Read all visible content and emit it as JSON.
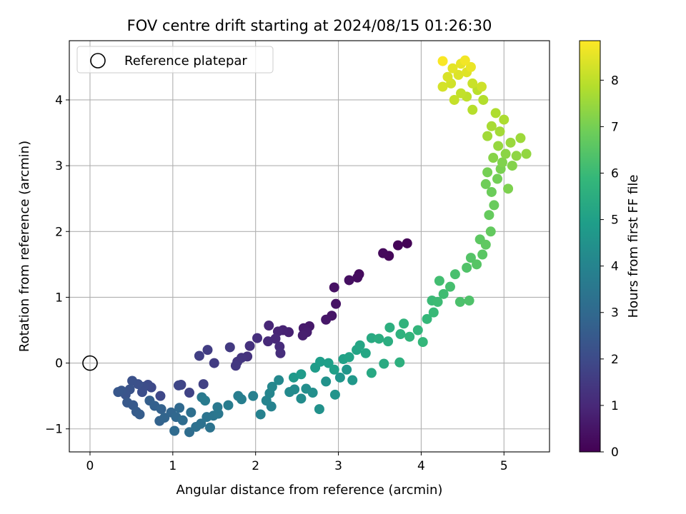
{
  "chart_data": {
    "type": "scatter",
    "title": "FOV centre drift starting at 2024/08/15 01:26:30",
    "xlabel": "Angular distance from reference (arcmin)",
    "ylabel": "Rotation from reference (arcmin)",
    "xlim": [
      -0.25,
      5.55
    ],
    "ylim": [
      -1.35,
      4.9
    ],
    "xticks": [
      "0",
      "1",
      "2",
      "3",
      "4",
      "5"
    ],
    "yticks": [
      "−1",
      "0",
      "1",
      "2",
      "3",
      "4"
    ],
    "grid": true,
    "legend": {
      "placement": "upper-left",
      "entries": [
        "Reference platepar"
      ]
    },
    "reference_point": {
      "x": 0,
      "y": 0
    },
    "colorbar": {
      "label": "Hours from first FF file",
      "range": [
        0,
        8.85
      ],
      "ticks": [
        "0",
        "1",
        "2",
        "3",
        "4",
        "5",
        "6",
        "7",
        "8"
      ],
      "colormap": "viridis"
    },
    "points": [
      {
        "x": 3.83,
        "y": 1.82,
        "h": 0.05
      },
      {
        "x": 3.72,
        "y": 1.79,
        "h": 0.1
      },
      {
        "x": 3.61,
        "y": 1.63,
        "h": 0.15
      },
      {
        "x": 3.54,
        "y": 1.67,
        "h": 0.2
      },
      {
        "x": 3.25,
        "y": 1.35,
        "h": 0.25
      },
      {
        "x": 3.23,
        "y": 1.3,
        "h": 0.3
      },
      {
        "x": 3.13,
        "y": 1.26,
        "h": 0.35
      },
      {
        "x": 2.95,
        "y": 1.15,
        "h": 0.4
      },
      {
        "x": 2.97,
        "y": 0.9,
        "h": 0.45
      },
      {
        "x": 2.92,
        "y": 0.72,
        "h": 0.5
      },
      {
        "x": 2.85,
        "y": 0.66,
        "h": 0.55
      },
      {
        "x": 2.65,
        "y": 0.56,
        "h": 0.6
      },
      {
        "x": 2.58,
        "y": 0.53,
        "h": 0.65
      },
      {
        "x": 2.62,
        "y": 0.47,
        "h": 0.7
      },
      {
        "x": 2.57,
        "y": 0.42,
        "h": 0.75
      },
      {
        "x": 2.4,
        "y": 0.47,
        "h": 0.8
      },
      {
        "x": 2.33,
        "y": 0.5,
        "h": 0.85
      },
      {
        "x": 2.27,
        "y": 0.48,
        "h": 0.9
      },
      {
        "x": 2.16,
        "y": 0.57,
        "h": 0.95
      },
      {
        "x": 2.24,
        "y": 0.37,
        "h": 1.0
      },
      {
        "x": 2.15,
        "y": 0.33,
        "h": 1.05
      },
      {
        "x": 2.29,
        "y": 0.25,
        "h": 1.1
      },
      {
        "x": 2.3,
        "y": 0.15,
        "h": 1.15
      },
      {
        "x": 2.02,
        "y": 0.38,
        "h": 1.2
      },
      {
        "x": 1.93,
        "y": 0.26,
        "h": 1.25
      },
      {
        "x": 1.9,
        "y": 0.1,
        "h": 1.3
      },
      {
        "x": 1.83,
        "y": 0.08,
        "h": 1.35
      },
      {
        "x": 1.78,
        "y": 0.02,
        "h": 1.4
      },
      {
        "x": 1.76,
        "y": -0.04,
        "h": 1.45
      },
      {
        "x": 1.69,
        "y": 0.24,
        "h": 1.5
      },
      {
        "x": 1.5,
        "y": 0.0,
        "h": 1.55
      },
      {
        "x": 1.42,
        "y": 0.2,
        "h": 1.6
      },
      {
        "x": 1.32,
        "y": 0.11,
        "h": 1.65
      },
      {
        "x": 1.37,
        "y": -0.32,
        "h": 1.7
      },
      {
        "x": 1.2,
        "y": -0.45,
        "h": 1.75
      },
      {
        "x": 1.1,
        "y": -0.33,
        "h": 1.8
      },
      {
        "x": 1.07,
        "y": -0.34,
        "h": 1.85
      },
      {
        "x": 0.85,
        "y": -0.5,
        "h": 1.9
      },
      {
        "x": 0.74,
        "y": -0.37,
        "h": 1.95
      },
      {
        "x": 0.7,
        "y": -0.33,
        "h": 2.0
      },
      {
        "x": 0.65,
        "y": -0.36,
        "h": 2.05
      },
      {
        "x": 0.63,
        "y": -0.44,
        "h": 2.1
      },
      {
        "x": 0.58,
        "y": -0.32,
        "h": 2.15
      },
      {
        "x": 0.51,
        "y": -0.27,
        "h": 2.2
      },
      {
        "x": 0.48,
        "y": -0.4,
        "h": 2.25
      },
      {
        "x": 0.43,
        "y": -0.48,
        "h": 2.3
      },
      {
        "x": 0.38,
        "y": -0.42,
        "h": 2.35
      },
      {
        "x": 0.34,
        "y": -0.44,
        "h": 2.4
      },
      {
        "x": 0.45,
        "y": -0.6,
        "h": 2.45
      },
      {
        "x": 0.52,
        "y": -0.64,
        "h": 2.5
      },
      {
        "x": 0.56,
        "y": -0.74,
        "h": 2.55
      },
      {
        "x": 0.6,
        "y": -0.78,
        "h": 2.6
      },
      {
        "x": 0.72,
        "y": -0.57,
        "h": 2.65
      },
      {
        "x": 0.78,
        "y": -0.65,
        "h": 2.7
      },
      {
        "x": 0.86,
        "y": -0.7,
        "h": 2.75
      },
      {
        "x": 0.84,
        "y": -0.88,
        "h": 2.8
      },
      {
        "x": 0.9,
        "y": -0.83,
        "h": 2.85
      },
      {
        "x": 0.98,
        "y": -0.75,
        "h": 2.9
      },
      {
        "x": 1.04,
        "y": -0.82,
        "h": 2.95
      },
      {
        "x": 1.08,
        "y": -0.68,
        "h": 3.0
      },
      {
        "x": 1.02,
        "y": -1.03,
        "h": 3.05
      },
      {
        "x": 1.12,
        "y": -0.87,
        "h": 3.1
      },
      {
        "x": 1.2,
        "y": -1.05,
        "h": 3.15
      },
      {
        "x": 1.22,
        "y": -0.75,
        "h": 3.2
      },
      {
        "x": 1.28,
        "y": -0.97,
        "h": 3.25
      },
      {
        "x": 1.34,
        "y": -0.92,
        "h": 3.3
      },
      {
        "x": 1.45,
        "y": -0.98,
        "h": 3.35
      },
      {
        "x": 1.41,
        "y": -0.82,
        "h": 3.4
      },
      {
        "x": 1.49,
        "y": -0.8,
        "h": 3.45
      },
      {
        "x": 1.55,
        "y": -0.77,
        "h": 3.5
      },
      {
        "x": 1.54,
        "y": -0.67,
        "h": 3.55
      },
      {
        "x": 1.35,
        "y": -0.52,
        "h": 3.6
      },
      {
        "x": 1.39,
        "y": -0.57,
        "h": 3.65
      },
      {
        "x": 1.67,
        "y": -0.64,
        "h": 3.7
      },
      {
        "x": 1.79,
        "y": -0.5,
        "h": 3.75
      },
      {
        "x": 1.83,
        "y": -0.55,
        "h": 3.8
      },
      {
        "x": 1.97,
        "y": -0.5,
        "h": 3.85
      },
      {
        "x": 2.06,
        "y": -0.78,
        "h": 3.9
      },
      {
        "x": 2.19,
        "y": -0.66,
        "h": 3.95
      },
      {
        "x": 2.13,
        "y": -0.57,
        "h": 4.0
      },
      {
        "x": 2.17,
        "y": -0.46,
        "h": 4.05
      },
      {
        "x": 2.2,
        "y": -0.36,
        "h": 4.1
      },
      {
        "x": 2.28,
        "y": -0.26,
        "h": 4.15
      },
      {
        "x": 2.41,
        "y": -0.44,
        "h": 4.2
      },
      {
        "x": 2.47,
        "y": -0.4,
        "h": 4.25
      },
      {
        "x": 2.55,
        "y": -0.54,
        "h": 4.3
      },
      {
        "x": 2.61,
        "y": -0.39,
        "h": 4.35
      },
      {
        "x": 2.69,
        "y": -0.45,
        "h": 4.4
      },
      {
        "x": 2.77,
        "y": -0.7,
        "h": 4.45
      },
      {
        "x": 2.85,
        "y": -0.28,
        "h": 4.5
      },
      {
        "x": 2.96,
        "y": -0.48,
        "h": 4.55
      },
      {
        "x": 3.02,
        "y": -0.22,
        "h": 4.6
      },
      {
        "x": 3.1,
        "y": -0.1,
        "h": 4.65
      },
      {
        "x": 3.17,
        "y": -0.26,
        "h": 4.7
      },
      {
        "x": 2.46,
        "y": -0.22,
        "h": 4.75
      },
      {
        "x": 2.55,
        "y": -0.17,
        "h": 4.8
      },
      {
        "x": 2.72,
        "y": -0.07,
        "h": 4.85
      },
      {
        "x": 2.78,
        "y": 0.02,
        "h": 4.9
      },
      {
        "x": 2.88,
        "y": 0.0,
        "h": 4.95
      },
      {
        "x": 2.95,
        "y": -0.1,
        "h": 5.0
      },
      {
        "x": 3.06,
        "y": 0.06,
        "h": 5.05
      },
      {
        "x": 3.13,
        "y": 0.09,
        "h": 5.1
      },
      {
        "x": 3.22,
        "y": 0.2,
        "h": 5.15
      },
      {
        "x": 3.26,
        "y": 0.27,
        "h": 5.2
      },
      {
        "x": 3.33,
        "y": 0.15,
        "h": 5.25
      },
      {
        "x": 3.4,
        "y": -0.15,
        "h": 5.3
      },
      {
        "x": 3.4,
        "y": 0.38,
        "h": 5.35
      },
      {
        "x": 3.55,
        "y": -0.01,
        "h": 5.4
      },
      {
        "x": 3.49,
        "y": 0.37,
        "h": 5.45
      },
      {
        "x": 3.6,
        "y": 0.33,
        "h": 5.5
      },
      {
        "x": 3.62,
        "y": 0.54,
        "h": 5.55
      },
      {
        "x": 3.74,
        "y": 0.01,
        "h": 5.6
      },
      {
        "x": 3.75,
        "y": 0.44,
        "h": 5.65
      },
      {
        "x": 3.79,
        "y": 0.6,
        "h": 5.7
      },
      {
        "x": 3.86,
        "y": 0.4,
        "h": 5.75
      },
      {
        "x": 3.96,
        "y": 0.5,
        "h": 5.8
      },
      {
        "x": 4.02,
        "y": 0.32,
        "h": 5.85
      },
      {
        "x": 4.07,
        "y": 0.67,
        "h": 5.9
      },
      {
        "x": 4.15,
        "y": 0.77,
        "h": 5.95
      },
      {
        "x": 4.13,
        "y": 0.95,
        "h": 6.0
      },
      {
        "x": 4.2,
        "y": 0.93,
        "h": 6.05
      },
      {
        "x": 4.27,
        "y": 1.05,
        "h": 6.1
      },
      {
        "x": 4.22,
        "y": 1.25,
        "h": 6.15
      },
      {
        "x": 4.35,
        "y": 1.16,
        "h": 6.2
      },
      {
        "x": 4.41,
        "y": 1.35,
        "h": 6.25
      },
      {
        "x": 4.47,
        "y": 0.93,
        "h": 6.3
      },
      {
        "x": 4.58,
        "y": 0.95,
        "h": 6.35
      },
      {
        "x": 4.55,
        "y": 1.45,
        "h": 6.4
      },
      {
        "x": 4.6,
        "y": 1.6,
        "h": 6.45
      },
      {
        "x": 4.67,
        "y": 1.5,
        "h": 6.5
      },
      {
        "x": 4.74,
        "y": 1.65,
        "h": 6.55
      },
      {
        "x": 4.71,
        "y": 1.88,
        "h": 6.6
      },
      {
        "x": 4.78,
        "y": 1.8,
        "h": 6.65
      },
      {
        "x": 4.84,
        "y": 2.0,
        "h": 6.7
      },
      {
        "x": 4.82,
        "y": 2.25,
        "h": 6.75
      },
      {
        "x": 4.88,
        "y": 2.4,
        "h": 6.8
      },
      {
        "x": 4.85,
        "y": 2.6,
        "h": 6.85
      },
      {
        "x": 4.78,
        "y": 2.72,
        "h": 6.9
      },
      {
        "x": 4.92,
        "y": 2.8,
        "h": 6.95
      },
      {
        "x": 4.8,
        "y": 2.9,
        "h": 7.0
      },
      {
        "x": 4.96,
        "y": 2.95,
        "h": 7.05
      },
      {
        "x": 5.05,
        "y": 2.65,
        "h": 7.1
      },
      {
        "x": 4.98,
        "y": 3.05,
        "h": 7.15
      },
      {
        "x": 5.1,
        "y": 3.0,
        "h": 7.2
      },
      {
        "x": 4.87,
        "y": 3.12,
        "h": 7.25
      },
      {
        "x": 5.02,
        "y": 3.18,
        "h": 7.3
      },
      {
        "x": 5.15,
        "y": 3.15,
        "h": 7.35
      },
      {
        "x": 5.27,
        "y": 3.18,
        "h": 7.4
      },
      {
        "x": 4.93,
        "y": 3.3,
        "h": 7.45
      },
      {
        "x": 5.08,
        "y": 3.35,
        "h": 7.5
      },
      {
        "x": 5.2,
        "y": 3.42,
        "h": 7.55
      },
      {
        "x": 4.8,
        "y": 3.45,
        "h": 7.6
      },
      {
        "x": 4.95,
        "y": 3.52,
        "h": 7.65
      },
      {
        "x": 4.85,
        "y": 3.6,
        "h": 7.7
      },
      {
        "x": 5.0,
        "y": 3.7,
        "h": 7.75
      },
      {
        "x": 4.9,
        "y": 3.8,
        "h": 7.8
      },
      {
        "x": 4.75,
        "y": 4.0,
        "h": 7.85
      },
      {
        "x": 4.62,
        "y": 3.85,
        "h": 7.9
      },
      {
        "x": 4.68,
        "y": 4.15,
        "h": 7.95
      },
      {
        "x": 4.55,
        "y": 4.05,
        "h": 8.0
      },
      {
        "x": 4.48,
        "y": 4.1,
        "h": 8.05
      },
      {
        "x": 4.4,
        "y": 4.0,
        "h": 8.1
      },
      {
        "x": 4.62,
        "y": 4.25,
        "h": 8.15
      },
      {
        "x": 4.73,
        "y": 4.2,
        "h": 8.2
      },
      {
        "x": 4.36,
        "y": 4.25,
        "h": 8.25
      },
      {
        "x": 4.26,
        "y": 4.2,
        "h": 8.3
      },
      {
        "x": 4.32,
        "y": 4.35,
        "h": 8.35
      },
      {
        "x": 4.45,
        "y": 4.38,
        "h": 8.4
      },
      {
        "x": 4.55,
        "y": 4.42,
        "h": 8.45
      },
      {
        "x": 4.38,
        "y": 4.48,
        "h": 8.5
      },
      {
        "x": 4.48,
        "y": 4.55,
        "h": 8.55
      },
      {
        "x": 4.6,
        "y": 4.5,
        "h": 8.6
      },
      {
        "x": 4.53,
        "y": 4.6,
        "h": 8.7
      },
      {
        "x": 4.26,
        "y": 4.59,
        "h": 8.8
      }
    ]
  }
}
